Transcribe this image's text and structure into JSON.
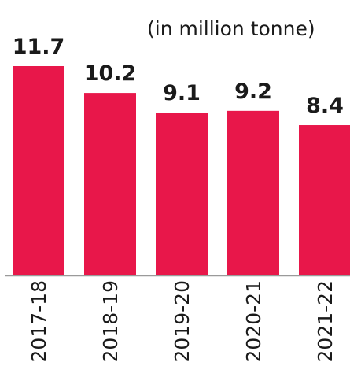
{
  "unit_note": "(in million tonne)",
  "colors": {
    "bar": "#E8174A",
    "baseline": "#9a9a9a",
    "text": "#1a1a1a"
  },
  "chart_data": {
    "type": "bar",
    "categories": [
      "2017-18",
      "2018-19",
      "2019-20",
      "2020-21",
      "2021-22"
    ],
    "values": [
      11.7,
      10.2,
      9.1,
      9.2,
      8.4
    ],
    "data_labels": [
      "11.7",
      "10.2",
      "9.1",
      "9.2",
      "8.4"
    ],
    "title": "",
    "xlabel": "",
    "ylabel": "",
    "ylim": [
      0,
      11.7
    ],
    "grid": false,
    "legend": "none"
  }
}
